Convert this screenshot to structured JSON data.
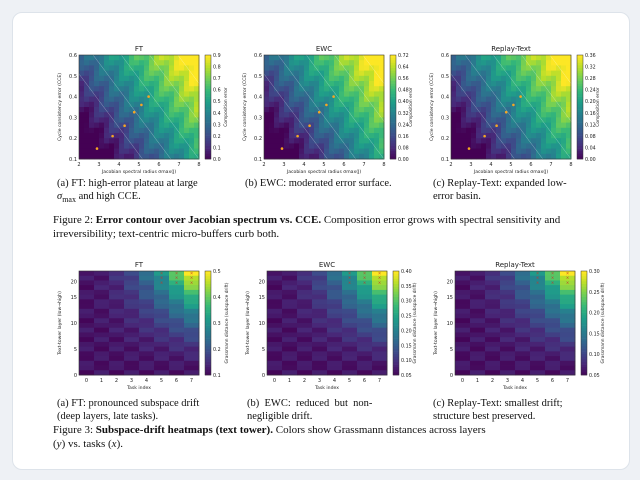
{
  "figure2": {
    "panels": [
      {
        "title": "FT",
        "xlabel": "Jacobian spectral radius σmax(J)",
        "ylabel": "Cycle consistency error (CCE)",
        "cbar_label": "Composition error",
        "cbar_ticks": [
          "0.9",
          "0.8",
          "0.7",
          "0.6",
          "0.5",
          "0.4",
          "0.3",
          "0.2",
          "0.1",
          "0.0"
        ],
        "caption": "(a) FT: high-error plateau at large σmax and high CCE.",
        "cap1": "(a) FT: high-error plateau at large",
        "cap2_sym": "σ",
        "cap2_sub": "max",
        "cap2_rest": " and high CCE."
      },
      {
        "title": "EWC",
        "xlabel": "Jacobian spectral radius σmax(J)",
        "ylabel": "Cycle consistency error (CCE)",
        "cbar_label": "Composition error",
        "cbar_ticks": [
          "0.72",
          "0.64",
          "0.56",
          "0.48",
          "0.40",
          "0.32",
          "0.24",
          "0.16",
          "0.08",
          "0.00"
        ],
        "caption": "(b) EWC: moderated error surface."
      },
      {
        "title": "Replay-Text",
        "xlabel": "Jacobian spectral radius σmax(J)",
        "ylabel": "Cycle consistency error (CCE)",
        "cbar_label": "Composition error",
        "cbar_ticks": [
          "0.36",
          "0.32",
          "0.28",
          "0.24",
          "0.20",
          "0.16",
          "0.12",
          "0.08",
          "0.04",
          "0.00"
        ],
        "caption": "(c) Replay-Text: expanded low-error basin.",
        "cap1": "(c) Replay-Text: expanded low-",
        "cap2": "error basin."
      }
    ],
    "x_ticks": [
      "2",
      "3",
      "4",
      "5",
      "6",
      "7",
      "8"
    ],
    "y_ticks": [
      "0.6",
      "0.5",
      "0.4",
      "0.3",
      "0.2",
      "0.1"
    ],
    "label": "Figure 2:",
    "bold": "Error contour over Jacobian spectrum vs. CCE.",
    "rest": " Composition error grows with spectral sensitivity and irreversibility; text-centric micro-buffers curb both."
  },
  "figure3": {
    "panels": [
      {
        "title": "FT",
        "xlabel": "Task index",
        "ylabel": "Text-tower layer (low→high)",
        "cbar_label": "Grassmann distance (subspace drift)",
        "cbar_ticks": [
          "0.5",
          "0.4",
          "0.3",
          "0.2",
          "0.1"
        ],
        "caption": "(a) FT: pronounced subspace drift (deep layers, late tasks).",
        "cap1": "(a) FT: pronounced subspace drift",
        "cap2": "(deep layers, late tasks)."
      },
      {
        "title": "EWC",
        "xlabel": "Task index",
        "ylabel": "Text-tower layer (low→high)",
        "cbar_label": "Grassmann distance (subspace drift)",
        "cbar_ticks": [
          "0.40",
          "0.35",
          "0.30",
          "0.25",
          "0.20",
          "0.15",
          "0.10",
          "0.05"
        ],
        "caption": "(b) EWC: reduced but non-negligible drift.",
        "cap1": "(b)  EWC:  reduced  but  non-",
        "cap2": "negligible drift."
      },
      {
        "title": "Replay-Text",
        "xlabel": "Task index",
        "ylabel": "Text-tower layer (low→high)",
        "cbar_label": "Grassmann distance (subspace drift)",
        "cbar_ticks": [
          "0.30",
          "0.25",
          "0.20",
          "0.15",
          "0.10",
          "0.05"
        ],
        "caption": "(c) Replay-Text: smallest drift; structure best preserved.",
        "cap1": "(c) Replay-Text: smallest drift;",
        "cap2": "structure best preserved."
      }
    ],
    "x_ticks": [
      "0",
      "1",
      "2",
      "3",
      "4",
      "5",
      "6",
      "7"
    ],
    "y_ticks": [
      "20",
      "15",
      "10",
      "5",
      "0"
    ],
    "label": "Figure 3:",
    "bold": "Subspace-drift heatmaps (text tower).",
    "rest": " Colors show Grassmann distances across layers (y) vs. tasks (x).",
    "rest1": " Colors show Grassmann distances across layers",
    "rest2a": "(",
    "rest2y": "y",
    "rest2b": ") vs. tasks (",
    "rest2x": "x",
    "rest2c": ")."
  },
  "colors": {
    "viridis": [
      "#440154",
      "#482878",
      "#3e4989",
      "#31688e",
      "#26828e",
      "#1f9e89",
      "#35b779",
      "#6ece58",
      "#b5de2b",
      "#fde725"
    ],
    "marker": "#f5a623"
  }
}
